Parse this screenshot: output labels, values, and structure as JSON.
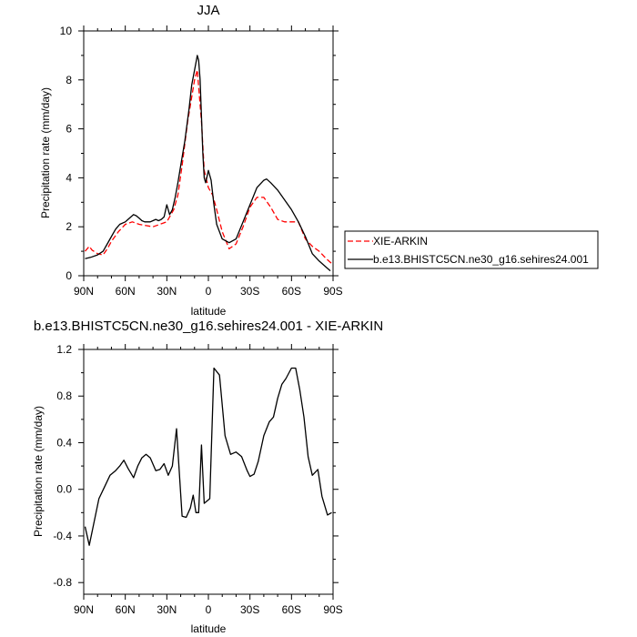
{
  "chart_data": [
    {
      "type": "line",
      "title": "JJA",
      "xlabel": "latitude",
      "ylabel": "Precipitation rate (mm/day)",
      "xlim": [
        90,
        -90
      ],
      "ylim": [
        0,
        10
      ],
      "xticks": [
        90,
        60,
        30,
        0,
        -30,
        -60,
        -90
      ],
      "xtick_labels": [
        "90N",
        "60N",
        "30N",
        "0",
        "30S",
        "60S",
        "90S"
      ],
      "yticks": [
        0,
        2,
        4,
        6,
        8,
        10
      ],
      "ytick_labels": [
        "0",
        "2",
        "4",
        "6",
        "8",
        "10"
      ],
      "legend": "right",
      "series": [
        {
          "name": "XIE-ARKIN",
          "color": "#ff0000",
          "style": "dashed",
          "x": [
            89,
            86,
            84,
            80,
            76,
            73,
            70,
            65,
            60,
            55,
            50,
            45,
            40,
            35,
            30,
            25,
            22,
            19,
            15,
            10,
            8,
            5,
            3,
            0,
            -3,
            -6,
            -10,
            -15,
            -20,
            -25,
            -30,
            -35,
            -40,
            -45,
            -50,
            -55,
            -60,
            -65,
            -70,
            -75,
            -80,
            -85,
            -89
          ],
          "y": [
            1.0,
            1.2,
            1.05,
            0.9,
            0.85,
            1.1,
            1.4,
            1.8,
            2.1,
            2.2,
            2.1,
            2.05,
            2.0,
            2.1,
            2.2,
            2.7,
            3.3,
            4.5,
            6.3,
            8.0,
            8.4,
            6.3,
            4.3,
            3.6,
            3.3,
            2.7,
            1.8,
            1.1,
            1.3,
            2.0,
            2.8,
            3.2,
            3.2,
            2.8,
            2.3,
            2.2,
            2.2,
            2.2,
            1.5,
            1.2,
            1.0,
            0.7,
            0.5
          ]
        },
        {
          "name": "b.e13.BHISTC5CN.ne30_g16.sehires24.001",
          "color": "#000000",
          "style": "solid",
          "x": [
            89,
            85,
            80,
            76,
            73,
            70,
            67,
            64,
            60,
            58,
            56,
            54,
            52,
            50,
            48,
            46,
            42,
            40,
            38,
            36,
            34,
            32,
            30,
            28,
            26,
            24,
            22,
            20,
            17,
            14,
            12,
            10,
            9,
            8,
            7,
            6,
            5,
            4,
            3,
            2,
            0,
            -2,
            -4,
            -6,
            -10,
            -15,
            -20,
            -25,
            -30,
            -35,
            -40,
            -42,
            -45,
            -50,
            -55,
            -60,
            -65,
            -70,
            -75,
            -80,
            -85,
            -88
          ],
          "y": [
            0.7,
            0.75,
            0.85,
            1.0,
            1.3,
            1.6,
            1.9,
            2.1,
            2.2,
            2.3,
            2.4,
            2.5,
            2.45,
            2.35,
            2.25,
            2.2,
            2.2,
            2.25,
            2.3,
            2.25,
            2.3,
            2.4,
            2.9,
            2.5,
            2.7,
            3.2,
            3.8,
            4.5,
            5.5,
            6.8,
            7.8,
            8.4,
            8.7,
            9.0,
            8.8,
            8.0,
            6.5,
            5.0,
            4.0,
            3.8,
            4.3,
            3.9,
            2.9,
            2.1,
            1.5,
            1.35,
            1.5,
            2.2,
            2.9,
            3.6,
            3.9,
            3.95,
            3.8,
            3.5,
            3.1,
            2.7,
            2.2,
            1.6,
            0.9,
            0.6,
            0.35,
            0.2
          ]
        }
      ]
    },
    {
      "type": "line",
      "title": "b.e13.BHISTC5CN.ne30_g16.sehires24.001 - XIE-ARKIN",
      "xlabel": "latitude",
      "ylabel": "Precipitation rate (mm/day)",
      "xlim": [
        90,
        -90
      ],
      "ylim": [
        -0.9,
        1.2
      ],
      "xticks": [
        90,
        60,
        30,
        0,
        -30,
        -60,
        -90
      ],
      "xtick_labels": [
        "90N",
        "60N",
        "30N",
        "0",
        "30S",
        "60S",
        "90S"
      ],
      "yticks": [
        -0.8,
        -0.4,
        0.0,
        0.4,
        0.8,
        1.2
      ],
      "ytick_labels": [
        "-0.8",
        "-0.4",
        "0.0",
        "0.4",
        "0.8",
        "1.2"
      ],
      "series": [
        {
          "color": "#000000",
          "style": "solid",
          "x": [
            89,
            86,
            82,
            79,
            75,
            71,
            67,
            64,
            61,
            58,
            54,
            51,
            48,
            45,
            42,
            38,
            35,
            32,
            29,
            26,
            23,
            19,
            16,
            13,
            11,
            9,
            7,
            5,
            3,
            -1,
            -4,
            -8,
            -12,
            -16,
            -20,
            -24,
            -28,
            -30,
            -33,
            -36,
            -40,
            -44,
            -47,
            -50,
            -53,
            -56,
            -60,
            -63,
            -66,
            -69,
            -72,
            -75,
            -79,
            -82,
            -86,
            -89
          ],
          "y": [
            -0.32,
            -0.48,
            -0.25,
            -0.08,
            0.02,
            0.12,
            0.16,
            0.2,
            0.25,
            0.18,
            0.1,
            0.2,
            0.27,
            0.3,
            0.27,
            0.16,
            0.17,
            0.22,
            0.12,
            0.2,
            0.52,
            -0.23,
            -0.24,
            -0.16,
            -0.05,
            -0.2,
            -0.2,
            0.38,
            -0.12,
            -0.08,
            1.04,
            0.98,
            0.46,
            0.3,
            0.32,
            0.28,
            0.16,
            0.11,
            0.13,
            0.24,
            0.46,
            0.58,
            0.62,
            0.78,
            0.9,
            0.95,
            1.04,
            1.04,
            0.85,
            0.62,
            0.28,
            0.12,
            0.17,
            -0.06,
            -0.22,
            -0.2
          ]
        }
      ]
    }
  ]
}
